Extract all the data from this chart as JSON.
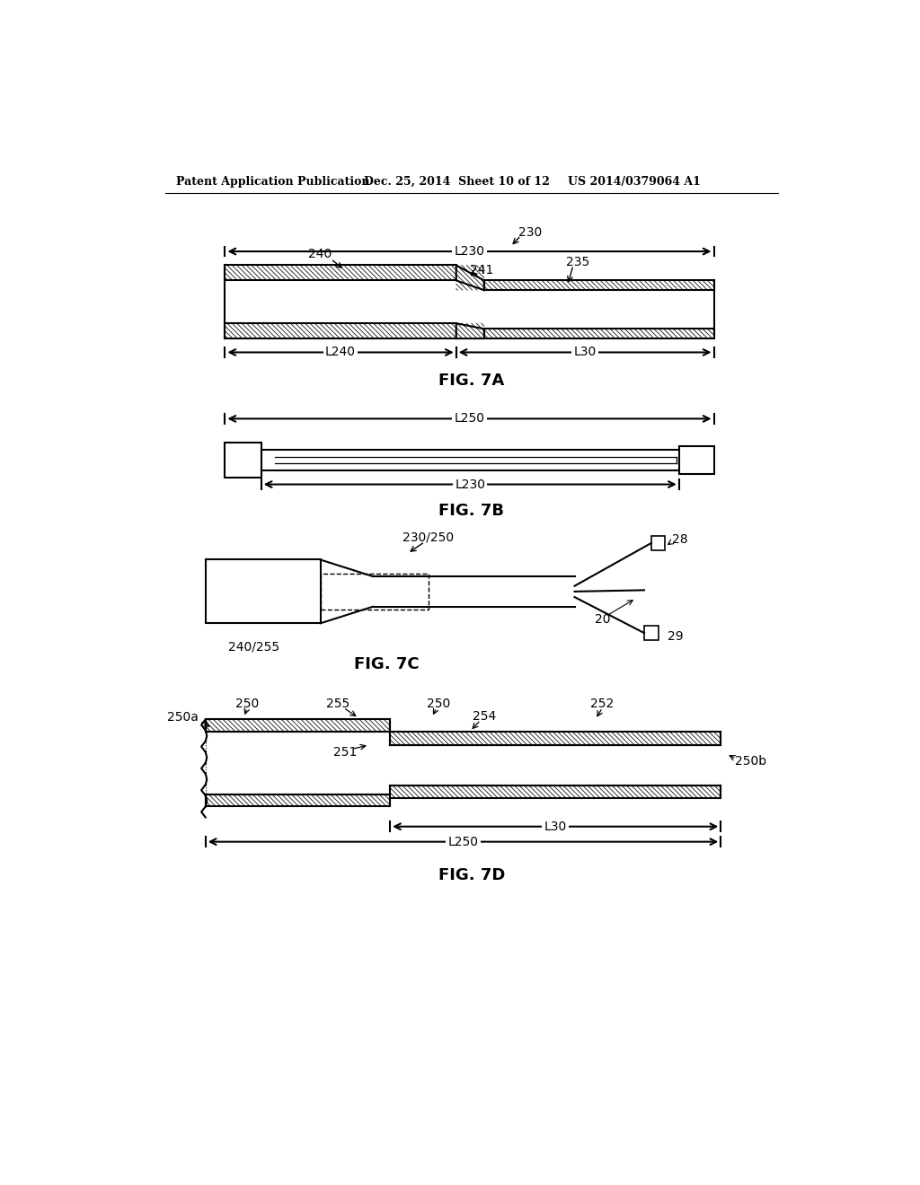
{
  "background_color": "#ffffff",
  "header_left": "Patent Application Publication",
  "header_mid": "Dec. 25, 2014  Sheet 10 of 12",
  "header_right": "US 2014/0379064 A1"
}
